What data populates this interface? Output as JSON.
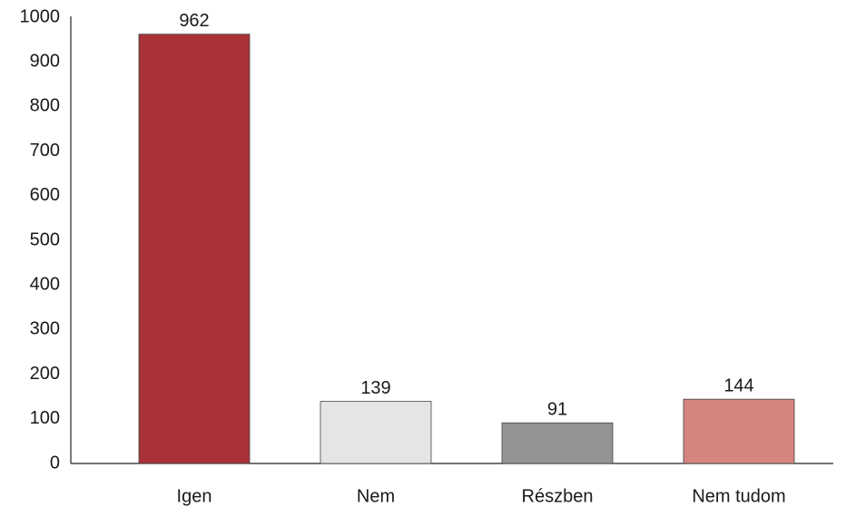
{
  "chart_data": {
    "type": "bar",
    "categories": [
      "Igen",
      "Nem",
      "Részben",
      "Nem tudom"
    ],
    "values": [
      962,
      139,
      91,
      144
    ],
    "colors": [
      "#a93237",
      "#e4e5e6",
      "#939393",
      "#d68480"
    ],
    "ylim": [
      0,
      1000
    ],
    "yticks": [
      0,
      100,
      200,
      300,
      400,
      500,
      600,
      700,
      800,
      900,
      1000
    ]
  }
}
